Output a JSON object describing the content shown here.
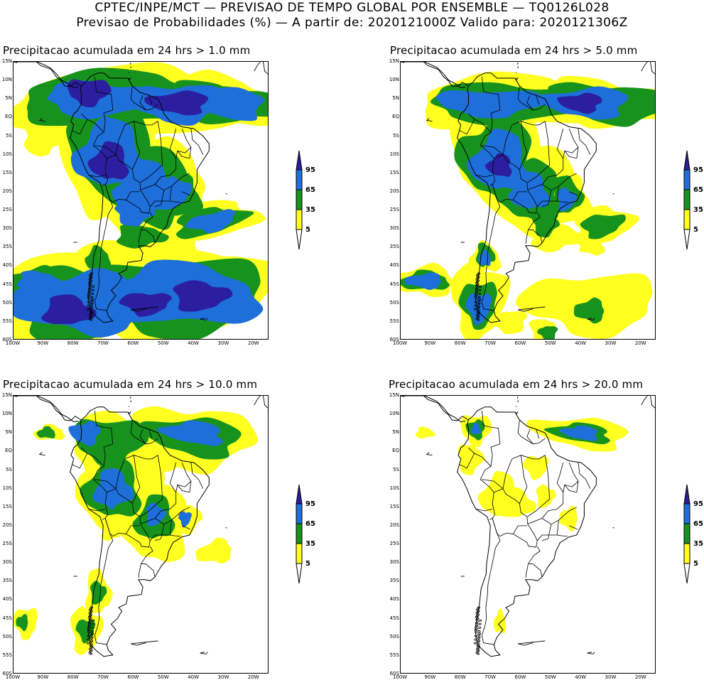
{
  "header": {
    "line1": "CPTEC/INPE/MCT — PREVISAO DE TEMPO GLOBAL POR ENSEMBLE — TQ0126L028",
    "line2": "Previsao de Probabilidades (%) —  A partir de: 2020121000Z  Valido para: 2020121306Z"
  },
  "axes": {
    "lat_ticks": [
      "15N",
      "10N",
      "5N",
      "EQ",
      "5S",
      "10S",
      "15S",
      "20S",
      "25S",
      "30S",
      "35S",
      "40S",
      "45S",
      "50S",
      "55S",
      "60S"
    ],
    "lon_ticks": [
      "100W",
      "90W",
      "80W",
      "70W",
      "60W",
      "50W",
      "40W",
      "30W",
      "20W"
    ]
  },
  "legend": {
    "levels": [
      "95",
      "65",
      "35",
      "5"
    ],
    "colors": {
      "dark_blue": "#2b1fa0",
      "blue": "#1e6fd9",
      "green": "#17921d",
      "yellow": "#ffff20"
    }
  },
  "panels": [
    {
      "id": "p1",
      "title": "Precipitacao acumulada em 24 hrs > 1.0 mm"
    },
    {
      "id": "p2",
      "title": "Precipitacao acumulada em 24 hrs > 5.0 mm"
    },
    {
      "id": "p3",
      "title": "Precipitacao acumulada em 24 hrs > 10.0 mm"
    },
    {
      "id": "p4",
      "title": "Precipitacao acumulada em 24 hrs > 20.0 mm"
    }
  ]
}
